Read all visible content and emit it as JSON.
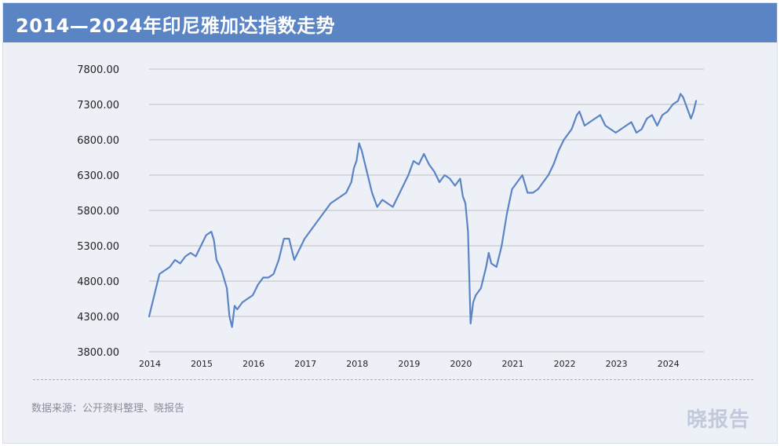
{
  "header": {
    "title": "2014—2024年印尼雅加达指数走势"
  },
  "footer": {
    "source": "数据来源：公开资料整理、晓报告",
    "brand": "晓报告"
  },
  "colors": {
    "header_bg": "#5b84c4",
    "line": "#5b84c4",
    "background": "#eef0f8",
    "grid": "#bfbfbf"
  },
  "chart_data": {
    "type": "line",
    "title": "2014—2024年印尼雅加达指数走势",
    "xlabel": "",
    "ylabel": "",
    "x_ticks": [
      "2014",
      "2015",
      "2016",
      "2017",
      "2018",
      "2019",
      "2020",
      "2021",
      "2022",
      "2023",
      "2024"
    ],
    "y_ticks": [
      "3800.00",
      "4300.00",
      "4800.00",
      "5300.00",
      "5800.00",
      "6300.00",
      "6800.00",
      "7300.00",
      "7800.00"
    ],
    "ylim": [
      3800,
      7800
    ],
    "xlim": [
      2014.0,
      2024.7
    ],
    "grid": "horizontal",
    "legend": "none",
    "series": [
      {
        "x": [
          2014.0,
          2014.05,
          2014.1,
          2014.2,
          2014.3,
          2014.4,
          2014.5,
          2014.6,
          2014.7,
          2014.8,
          2014.9,
          2015.0,
          2015.1,
          2015.2,
          2015.25,
          2015.3,
          2015.4,
          2015.5,
          2015.55,
          2015.6,
          2015.65,
          2015.7,
          2015.8,
          2015.9,
          2016.0,
          2016.1,
          2016.2,
          2016.3,
          2016.4,
          2016.5,
          2016.6,
          2016.7,
          2016.8,
          2016.9,
          2017.0,
          2017.1,
          2017.2,
          2017.3,
          2017.4,
          2017.5,
          2017.6,
          2017.7,
          2017.8,
          2017.9,
          2017.95,
          2018.0,
          2018.05,
          2018.1,
          2018.2,
          2018.3,
          2018.4,
          2018.5,
          2018.6,
          2018.7,
          2018.8,
          2018.9,
          2019.0,
          2019.1,
          2019.2,
          2019.3,
          2019.4,
          2019.5,
          2019.6,
          2019.7,
          2019.8,
          2019.9,
          2020.0,
          2020.05,
          2020.1,
          2020.15,
          2020.2,
          2020.25,
          2020.3,
          2020.4,
          2020.5,
          2020.55,
          2020.6,
          2020.7,
          2020.8,
          2020.9,
          2021.0,
          2021.1,
          2021.2,
          2021.3,
          2021.4,
          2021.5,
          2021.6,
          2021.7,
          2021.8,
          2021.9,
          2022.0,
          2022.1,
          2022.15,
          2022.2,
          2022.25,
          2022.3,
          2022.4,
          2022.5,
          2022.6,
          2022.7,
          2022.8,
          2022.9,
          2023.0,
          2023.1,
          2023.2,
          2023.3,
          2023.4,
          2023.5,
          2023.6,
          2023.7,
          2023.8,
          2023.9,
          2024.0,
          2024.1,
          2024.2,
          2024.25,
          2024.3,
          2024.35,
          2024.4,
          2024.45,
          2024.5,
          2024.55
        ],
        "y": [
          4300,
          4450,
          4600,
          4900,
          4950,
          5000,
          5100,
          5050,
          5150,
          5200,
          5150,
          5300,
          5450,
          5500,
          5380,
          5100,
          4950,
          4700,
          4300,
          4150,
          4450,
          4400,
          4500,
          4550,
          4600,
          4750,
          4850,
          4850,
          4900,
          5100,
          5400,
          5400,
          5100,
          5250,
          5400,
          5500,
          5600,
          5700,
          5800,
          5900,
          5950,
          6000,
          6050,
          6200,
          6400,
          6500,
          6750,
          6650,
          6350,
          6050,
          5850,
          5950,
          5900,
          5850,
          6000,
          6150,
          6300,
          6500,
          6450,
          6600,
          6450,
          6350,
          6200,
          6300,
          6250,
          6150,
          6250,
          6000,
          5900,
          5500,
          4200,
          4500,
          4600,
          4700,
          5000,
          5200,
          5050,
          5000,
          5300,
          5750,
          6100,
          6200,
          6300,
          6050,
          6050,
          6100,
          6200,
          6300,
          6450,
          6650,
          6800,
          6900,
          6950,
          7050,
          7150,
          7200,
          7000,
          7050,
          7100,
          7150,
          7000,
          6950,
          6900,
          6950,
          7000,
          7050,
          6900,
          6950,
          7100,
          7150,
          7000,
          7150,
          7200,
          7300,
          7350,
          7450,
          7400,
          7300,
          7200,
          7100,
          7200,
          7350
        ]
      }
    ]
  }
}
